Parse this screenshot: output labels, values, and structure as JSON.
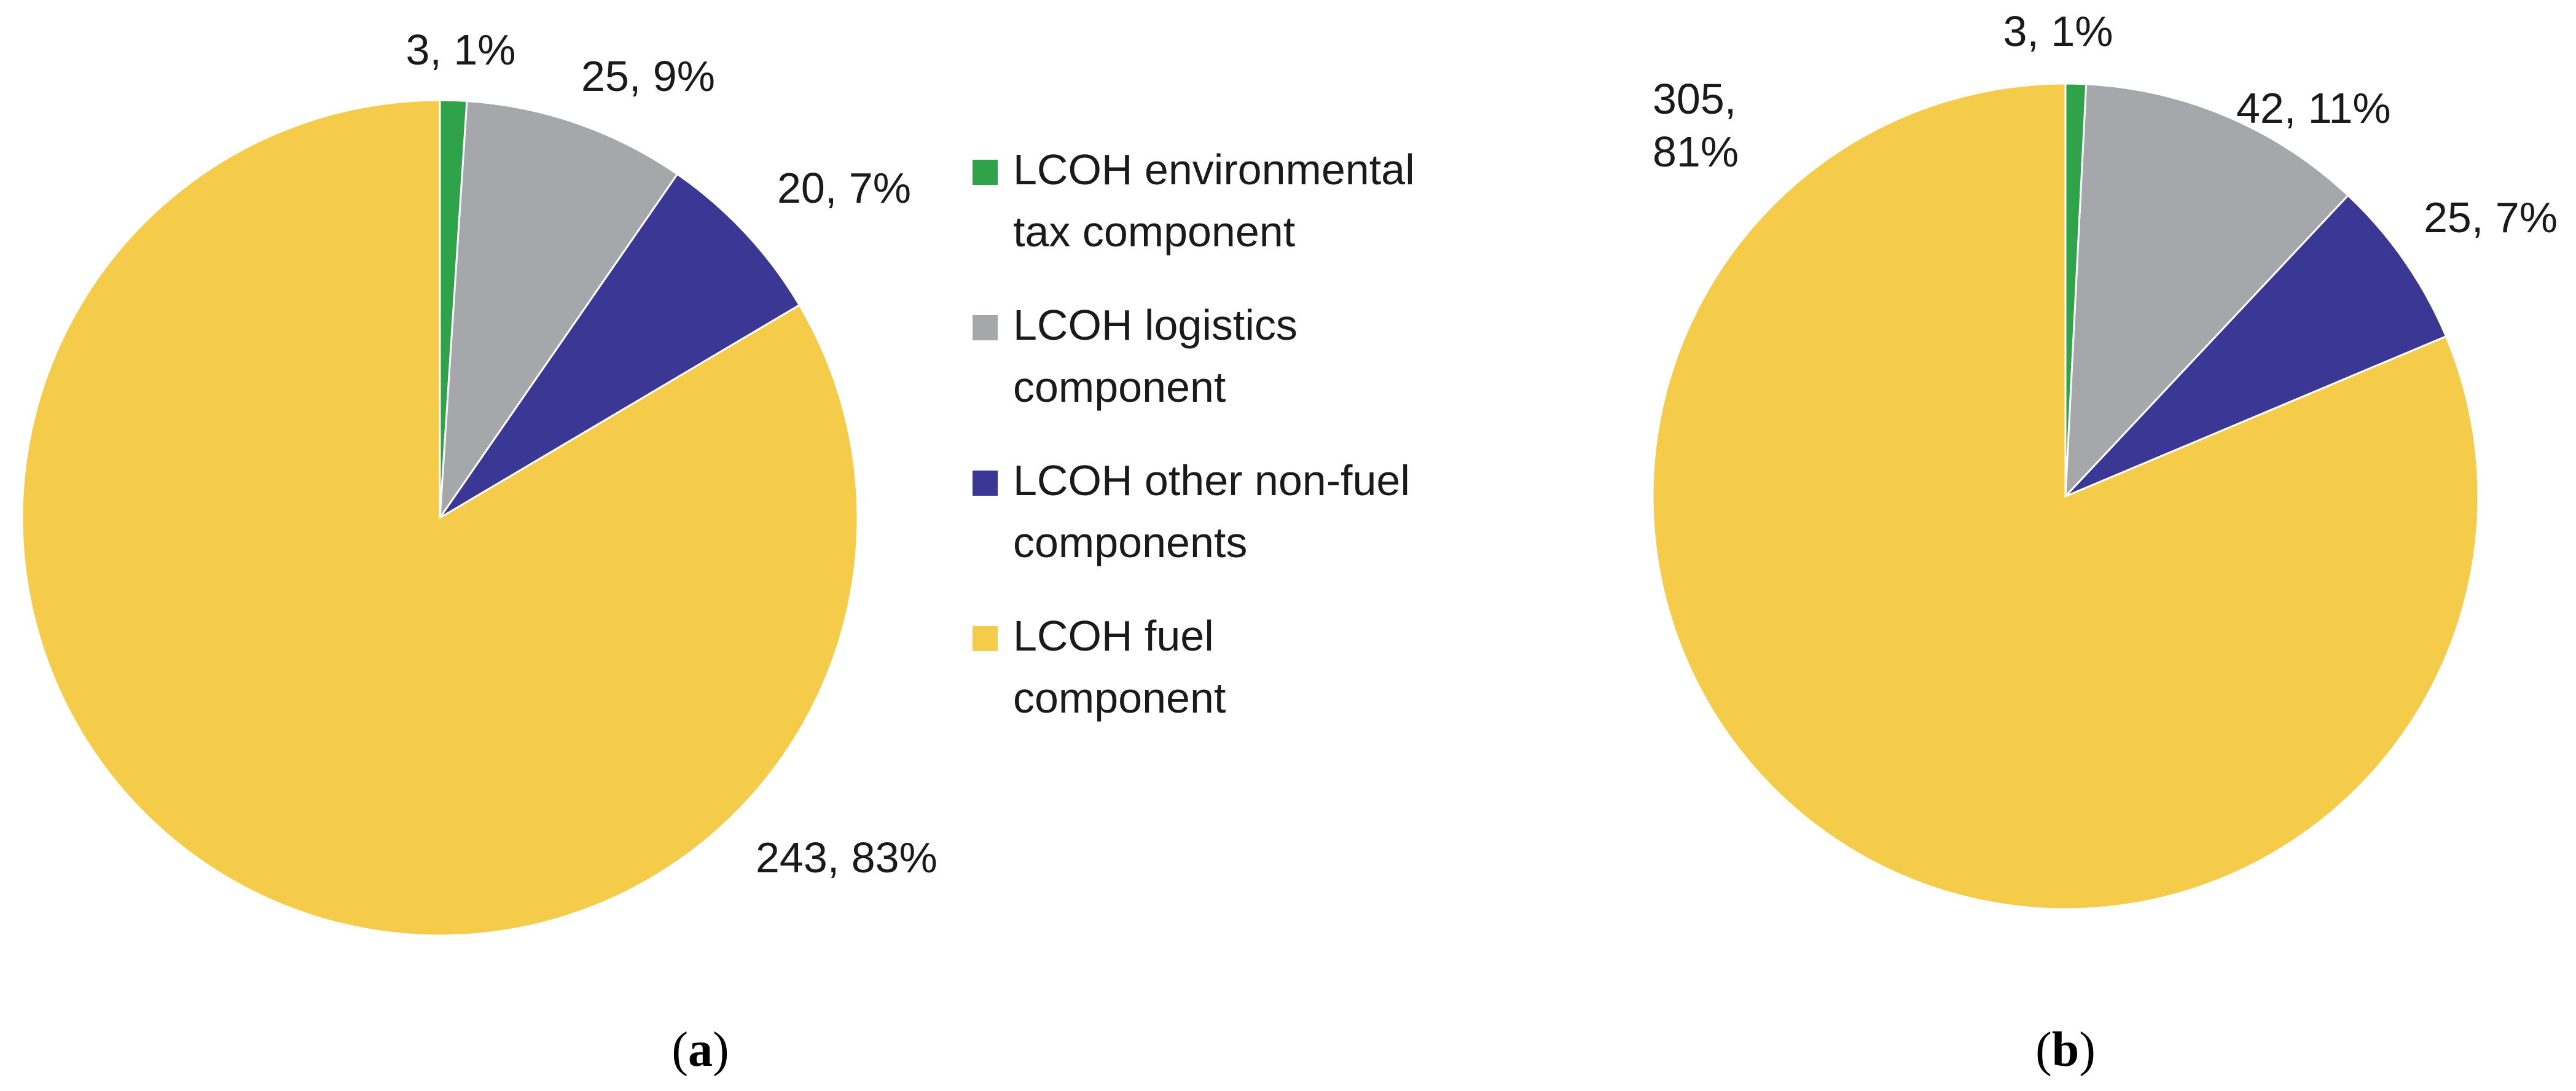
{
  "chart_data": [
    {
      "type": "pie",
      "panel": "a",
      "caption_open": "(",
      "caption_letter": "a",
      "caption_close": ")",
      "start_angle_deg": 0,
      "direction": "clockwise",
      "slices": [
        {
          "key": "env",
          "value": 3,
          "percent": 1,
          "label_lines": [
            "3, 1%"
          ]
        },
        {
          "key": "logistics",
          "value": 25,
          "percent": 9,
          "label_lines": [
            "25, 9%"
          ]
        },
        {
          "key": "other",
          "value": 20,
          "percent": 7,
          "label_lines": [
            "20, 7%"
          ]
        },
        {
          "key": "fuel",
          "value": 243,
          "percent": 83,
          "label_lines": [
            "243, 83%"
          ]
        }
      ]
    },
    {
      "type": "pie",
      "panel": "b",
      "caption_open": "(",
      "caption_letter": "b",
      "caption_close": ")",
      "start_angle_deg": 0,
      "direction": "clockwise",
      "slices": [
        {
          "key": "env",
          "value": 3,
          "percent": 1,
          "label_lines": [
            "3, 1%"
          ]
        },
        {
          "key": "logistics",
          "value": 42,
          "percent": 11,
          "label_lines": [
            "42, 11%"
          ]
        },
        {
          "key": "other",
          "value": 25,
          "percent": 7,
          "label_lines": [
            "25, 7%"
          ]
        },
        {
          "key": "fuel",
          "value": 305,
          "percent": 81,
          "label_lines": [
            "305,",
            "81%"
          ]
        }
      ]
    }
  ],
  "legend": {
    "placement": "between panels",
    "items": [
      {
        "key": "env",
        "color": "#2ea34a",
        "lines": [
          "LCOH environmental",
          "tax component"
        ]
      },
      {
        "key": "logistics",
        "color": "#a6a7ab",
        "lines": [
          "LCOH logistics",
          "component"
        ]
      },
      {
        "key": "other",
        "color": "#3a3894",
        "lines": [
          "LCOH other non-fuel",
          "components"
        ]
      },
      {
        "key": "fuel",
        "color": "#f5cb4a",
        "lines": [
          "LCOH fuel",
          "component"
        ]
      }
    ]
  }
}
